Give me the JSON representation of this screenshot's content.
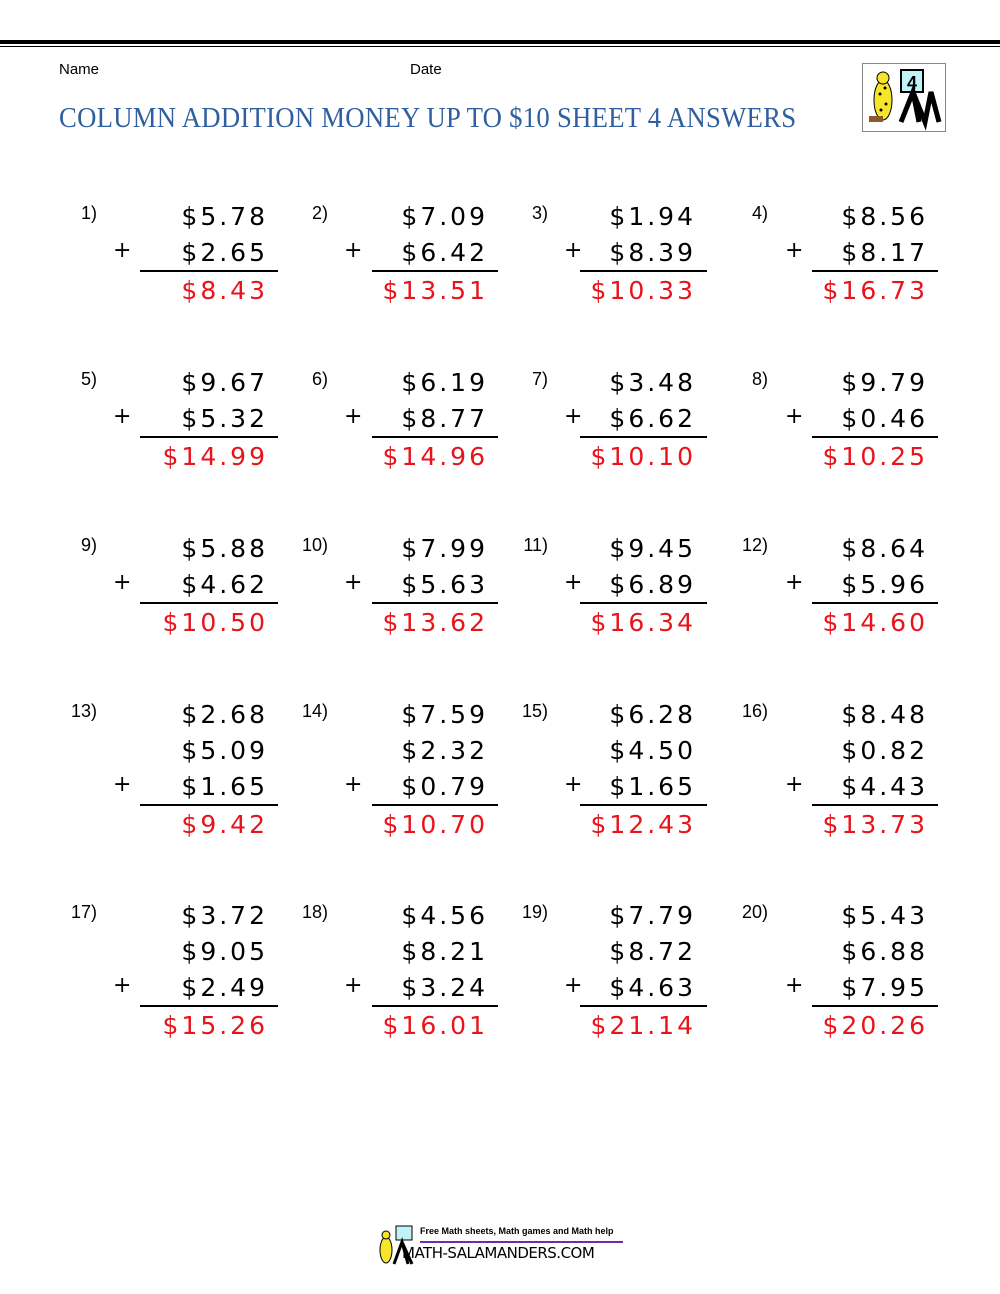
{
  "header": {
    "name_label": "Name",
    "date_label": "Date",
    "title": "COLUMN ADDITION MONEY UP TO $10 SHEET 4 ANSWERS",
    "logo_text": "4"
  },
  "colors": {
    "title": "#2f5f9e",
    "answer": "#e8141b"
  },
  "problems": [
    {
      "label": "1)",
      "addends": [
        "$5.78",
        "$2.65"
      ],
      "answer": "$8.43"
    },
    {
      "label": "2)",
      "addends": [
        "$7.09",
        "$6.42"
      ],
      "answer": "$13.51"
    },
    {
      "label": "3)",
      "addends": [
        "$1.94",
        "$8.39"
      ],
      "answer": "$10.33"
    },
    {
      "label": "4)",
      "addends": [
        "$8.56",
        "$8.17"
      ],
      "answer": "$16.73"
    },
    {
      "label": "5)",
      "addends": [
        "$9.67",
        "$5.32"
      ],
      "answer": "$14.99"
    },
    {
      "label": "6)",
      "addends": [
        "$6.19",
        "$8.77"
      ],
      "answer": "$14.96"
    },
    {
      "label": "7)",
      "addends": [
        "$3.48",
        "$6.62"
      ],
      "answer": "$10.10"
    },
    {
      "label": "8)",
      "addends": [
        "$9.79",
        "$0.46"
      ],
      "answer": "$10.25"
    },
    {
      "label": "9)",
      "addends": [
        "$5.88",
        "$4.62"
      ],
      "answer": "$10.50"
    },
    {
      "label": "10)",
      "addends": [
        "$7.99",
        "$5.63"
      ],
      "answer": "$13.62"
    },
    {
      "label": "11)",
      "addends": [
        "$9.45",
        "$6.89"
      ],
      "answer": "$16.34"
    },
    {
      "label": "12)",
      "addends": [
        "$8.64",
        "$5.96"
      ],
      "answer": "$14.60"
    },
    {
      "label": "13)",
      "addends": [
        "$2.68",
        "$5.09",
        "$1.65"
      ],
      "answer": "$9.42"
    },
    {
      "label": "14)",
      "addends": [
        "$7.59",
        "$2.32",
        "$0.79"
      ],
      "answer": "$10.70"
    },
    {
      "label": "15)",
      "addends": [
        "$6.28",
        "$4.50",
        "$1.65"
      ],
      "answer": "$12.43"
    },
    {
      "label": "16)",
      "addends": [
        "$8.48",
        "$0.82",
        "$4.43"
      ],
      "answer": "$13.73"
    },
    {
      "label": "17)",
      "addends": [
        "$3.72",
        "$9.05",
        "$2.49"
      ],
      "answer": "$15.26"
    },
    {
      "label": "18)",
      "addends": [
        "$4.56",
        "$8.21",
        "$3.24"
      ],
      "answer": "$16.01"
    },
    {
      "label": "19)",
      "addends": [
        "$7.79",
        "$8.72",
        "$4.63"
      ],
      "answer": "$21.14"
    },
    {
      "label": "20)",
      "addends": [
        "$5.43",
        "$6.88",
        "$7.95"
      ],
      "answer": "$20.26"
    }
  ],
  "operator": "+",
  "footer": {
    "tagline": "Free Math sheets, Math games and Math help",
    "site": "MATH-SALAMANDERS.COM"
  }
}
